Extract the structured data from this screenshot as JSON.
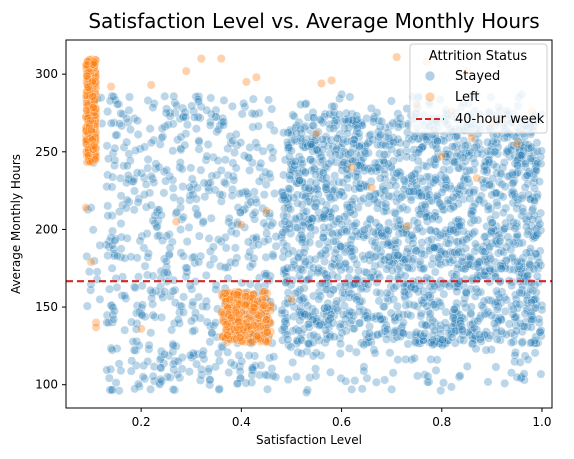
{
  "chart_data": {
    "type": "scatter",
    "title": "Satisfaction Level vs. Average Monthly Hours",
    "xlabel": "Satisfaction Level",
    "ylabel": "Average Monthly Hours",
    "xlim": [
      0.05,
      1.02
    ],
    "ylim": [
      85,
      322
    ],
    "xticks": [
      "0.2",
      "0.4",
      "0.6",
      "0.8",
      "1.0"
    ],
    "xtick_values": [
      0.2,
      0.4,
      0.6,
      0.8,
      1.0
    ],
    "yticks": [
      "100",
      "150",
      "200",
      "250",
      "300"
    ],
    "ytick_values": [
      100,
      150,
      200,
      250,
      300
    ],
    "grid": false,
    "legend": {
      "title": "Attrition Status",
      "placement": "top-right",
      "entries": [
        {
          "label": "Stayed",
          "color": "#1f77b4",
          "marker": "circle"
        },
        {
          "label": "Left",
          "color": "#ff7f0e",
          "marker": "circle"
        },
        {
          "label": "40-hour week",
          "color": "#d62728",
          "marker": "dashed-line"
        }
      ]
    },
    "reference_line": {
      "name": "40-hour week",
      "y": 166.67,
      "color": "#d62728",
      "style": "dashed"
    },
    "series": [
      {
        "name": "Stayed",
        "color": "#1f77b4",
        "alpha": 0.3,
        "regions": [
          {
            "x_range": [
              0.48,
              1.0
            ],
            "y_range": [
              126,
              275
            ],
            "count": 1600,
            "note_density": "dense"
          },
          {
            "x_range": [
              0.48,
              1.0
            ],
            "y_range": [
              96,
              286
            ],
            "count": 500
          },
          {
            "x_range": [
              0.13,
              0.47
            ],
            "y_range": [
              96,
              286
            ],
            "count": 650
          },
          {
            "x_range": [
              0.09,
              0.13
            ],
            "y_range": [
              135,
              290
            ],
            "count": 20
          }
        ],
        "points": [
          [
            0.1,
            214
          ],
          [
            0.36,
            238
          ],
          [
            0.25,
            275
          ],
          [
            0.6,
            287
          ],
          [
            0.87,
            287
          ],
          [
            0.96,
            287
          ],
          [
            0.53,
            95
          ],
          [
            0.7,
            97
          ]
        ]
      },
      {
        "name": "Left",
        "color": "#ff7f0e",
        "alpha": 0.35,
        "regions": [
          {
            "x_range": [
              0.09,
              0.11
            ],
            "y_range": [
              243,
              310
            ],
            "count": 260
          },
          {
            "x_range": [
              0.36,
              0.46
            ],
            "y_range": [
              127,
              160
            ],
            "count": 260
          }
        ],
        "points": [
          [
            0.09,
            214
          ],
          [
            0.1,
            179
          ],
          [
            0.11,
            140
          ],
          [
            0.11,
            137
          ],
          [
            0.14,
            292
          ],
          [
            0.22,
            293
          ],
          [
            0.29,
            302
          ],
          [
            0.32,
            310
          ],
          [
            0.36,
            310
          ],
          [
            0.41,
            295
          ],
          [
            0.43,
            298
          ],
          [
            0.56,
            294
          ],
          [
            0.58,
            296
          ],
          [
            0.71,
            311
          ],
          [
            0.77,
            308
          ],
          [
            0.85,
            302
          ],
          [
            0.27,
            205
          ],
          [
            0.4,
            203
          ],
          [
            0.45,
            212
          ],
          [
            0.62,
            240
          ],
          [
            0.66,
            227
          ],
          [
            0.73,
            202
          ],
          [
            0.8,
            247
          ],
          [
            0.87,
            233
          ],
          [
            0.2,
            136
          ],
          [
            0.5,
            155
          ],
          [
            0.55,
            262
          ],
          [
            0.9,
            268
          ],
          [
            0.92,
            271
          ],
          [
            0.75,
            280
          ],
          [
            0.82,
            276
          ],
          [
            0.86,
            259
          ],
          [
            0.95,
            255
          ],
          [
            0.98,
            276
          ]
        ]
      }
    ]
  }
}
